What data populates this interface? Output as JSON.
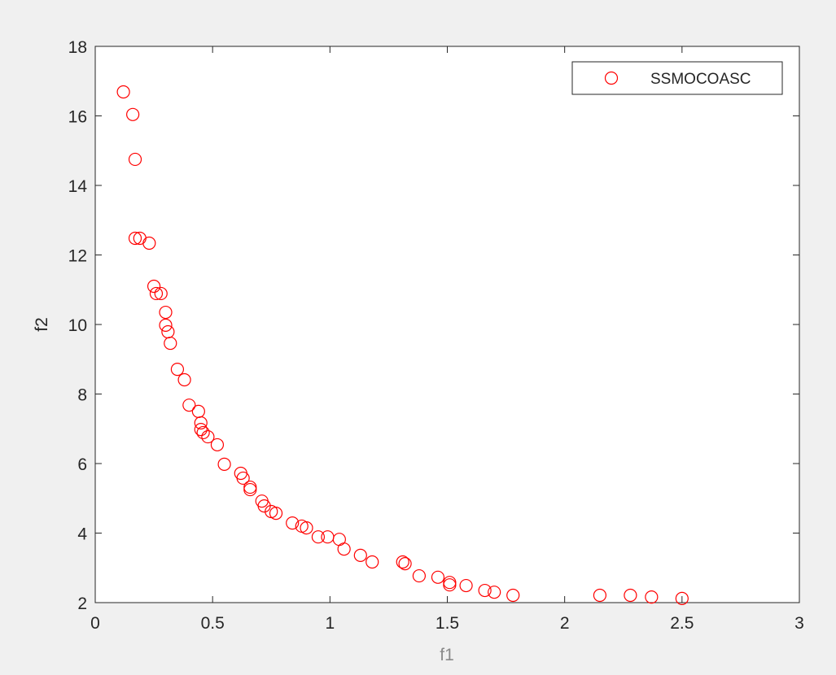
{
  "chart_data": {
    "type": "scatter",
    "xlabel": "f1",
    "ylabel": "f2",
    "series": [
      {
        "name": "SSMOCOASC",
        "color": "#ff0000",
        "x": [
          0.12,
          0.16,
          0.17,
          0.17,
          0.19,
          0.23,
          0.25,
          0.26,
          0.28,
          0.3,
          0.3,
          0.31,
          0.32,
          0.35,
          0.38,
          0.4,
          0.44,
          0.45,
          0.45,
          0.46,
          0.48,
          0.52,
          0.55,
          0.62,
          0.63,
          0.66,
          0.66,
          0.71,
          0.72,
          0.75,
          0.77,
          0.84,
          0.88,
          0.9,
          0.95,
          0.99,
          1.04,
          1.06,
          1.13,
          1.18,
          1.31,
          1.32,
          1.38,
          1.46,
          1.51,
          1.51,
          1.58,
          1.66,
          1.7,
          1.78,
          2.15,
          2.28,
          2.37,
          2.5
        ],
        "values": [
          16.69,
          16.04,
          14.75,
          12.48,
          12.48,
          12.34,
          11.1,
          10.89,
          10.89,
          10.35,
          9.98,
          9.79,
          9.46,
          8.71,
          8.41,
          7.68,
          7.5,
          7.17,
          6.98,
          6.89,
          6.77,
          6.54,
          5.98,
          5.72,
          5.58,
          5.32,
          5.25,
          4.92,
          4.78,
          4.62,
          4.57,
          4.29,
          4.2,
          4.15,
          3.89,
          3.89,
          3.82,
          3.54,
          3.36,
          3.17,
          3.17,
          3.12,
          2.77,
          2.73,
          2.58,
          2.51,
          2.49,
          2.35,
          2.3,
          2.21,
          2.21,
          2.21,
          2.16,
          2.12
        ]
      }
    ],
    "xlim": [
      0,
      3
    ],
    "ylim": [
      2,
      18
    ],
    "xticks": [
      0,
      0.5,
      1,
      1.5,
      2,
      2.5,
      3
    ],
    "yticks": [
      2,
      4,
      6,
      8,
      10,
      12,
      14,
      16,
      18
    ],
    "grid": false,
    "legend": "northeast"
  }
}
